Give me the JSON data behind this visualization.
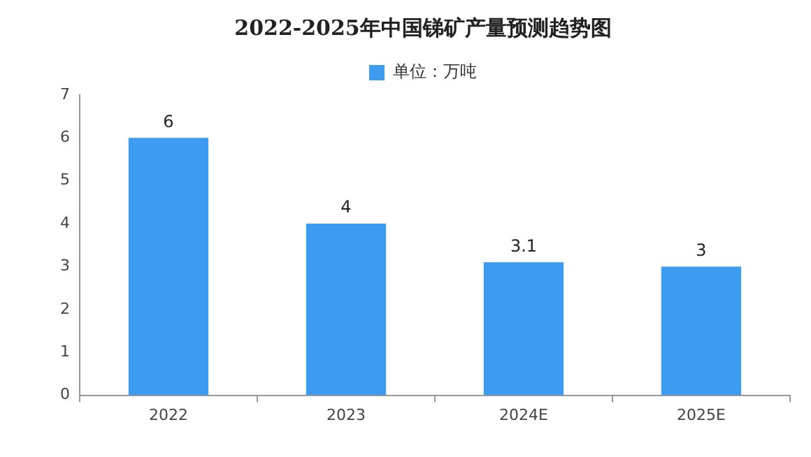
{
  "chart_data": {
    "type": "bar",
    "title": "2022-2025年中国锑矿产量预测趋势图",
    "categories": [
      "2022",
      "2023",
      "2024E",
      "2025E"
    ],
    "series": [
      {
        "name": "单位：万吨",
        "color": "#3d9cf0",
        "values": [
          6,
          4,
          3.1,
          3
        ]
      }
    ],
    "ylim": [
      0,
      7
    ],
    "yticks": [
      0,
      1,
      2,
      3,
      4,
      5,
      6,
      7
    ],
    "grid": false,
    "legend": "top",
    "data_labels": true
  }
}
